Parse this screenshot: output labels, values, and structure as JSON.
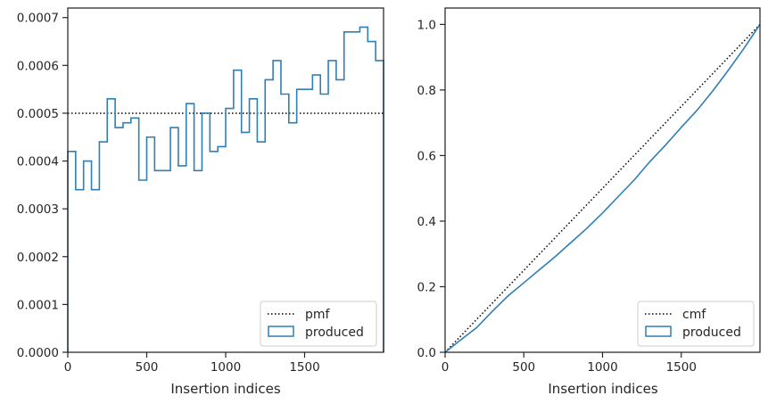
{
  "chart_data": [
    {
      "type": "step",
      "xlabel": "Insertion indices",
      "ylabel": "",
      "xlim": [
        0,
        2000
      ],
      "ylim": [
        0,
        0.00072
      ],
      "xticks": [
        0,
        500,
        1000,
        1500
      ],
      "xtick_labels": [
        "0",
        "500",
        "1000",
        "1500"
      ],
      "yticks": [
        0,
        0.0001,
        0.0002,
        0.0003,
        0.0004,
        0.0005,
        0.0006,
        0.0007
      ],
      "ytick_labels": [
        "0.0000",
        "0.0001",
        "0.0002",
        "0.0003",
        "0.0004",
        "0.0005",
        "0.0006",
        "0.0007"
      ],
      "grid": false,
      "legend_position": "lower-right",
      "legend": [
        "pmf",
        "produced"
      ],
      "series": [
        {
          "name": "pmf",
          "style": "dotted",
          "color": "#000000",
          "x": [
            0,
            2000
          ],
          "values": [
            0.0005,
            0.0005
          ]
        },
        {
          "name": "produced",
          "style": "step-histogram",
          "color": "#2f7fb5",
          "bin_width": 50,
          "bin_starts": [
            0,
            50,
            100,
            150,
            200,
            250,
            300,
            350,
            400,
            450,
            500,
            550,
            600,
            650,
            700,
            750,
            800,
            850,
            900,
            950,
            1000,
            1050,
            1100,
            1150,
            1200,
            1250,
            1300,
            1350,
            1400,
            1450,
            1500,
            1550,
            1600,
            1650,
            1700,
            1750,
            1800,
            1850,
            1900,
            1950
          ],
          "values": [
            0.00042,
            0.00034,
            0.0004,
            0.00034,
            0.00044,
            0.00053,
            0.00047,
            0.00048,
            0.00049,
            0.00036,
            0.00045,
            0.00038,
            0.00038,
            0.00047,
            0.00039,
            0.00052,
            0.00038,
            0.0005,
            0.00042,
            0.00043,
            0.00051,
            0.00059,
            0.00046,
            0.00053,
            0.00044,
            0.00057,
            0.00061,
            0.00054,
            0.00048,
            0.00055,
            0.00055,
            0.00058,
            0.00054,
            0.00061,
            0.00057,
            0.00067,
            0.00067,
            0.00068,
            0.00065,
            0.00061
          ]
        }
      ]
    },
    {
      "type": "line",
      "xlabel": "Insertion indices",
      "ylabel": "",
      "xlim": [
        0,
        2000
      ],
      "ylim": [
        0,
        1.05
      ],
      "xticks": [
        0,
        500,
        1000,
        1500
      ],
      "xtick_labels": [
        "0",
        "500",
        "1000",
        "1500"
      ],
      "yticks": [
        0,
        0.2,
        0.4,
        0.6,
        0.8,
        1.0
      ],
      "ytick_labels": [
        "0.0",
        "0.2",
        "0.4",
        "0.6",
        "0.8",
        "1.0"
      ],
      "grid": false,
      "legend_position": "lower-right",
      "legend": [
        "cmf",
        "produced"
      ],
      "series": [
        {
          "name": "cmf",
          "style": "dotted",
          "color": "#000000",
          "x": [
            0,
            2000
          ],
          "values": [
            0,
            1.0
          ]
        },
        {
          "name": "produced",
          "style": "solid",
          "color": "#2f7fb5",
          "x": [
            0,
            100,
            200,
            300,
            400,
            500,
            600,
            700,
            800,
            900,
            1000,
            1100,
            1200,
            1300,
            1400,
            1500,
            1600,
            1700,
            1800,
            1900,
            2000
          ],
          "values": [
            0,
            0.038,
            0.075,
            0.125,
            0.172,
            0.212,
            0.252,
            0.292,
            0.335,
            0.378,
            0.425,
            0.475,
            0.525,
            0.581,
            0.632,
            0.686,
            0.738,
            0.797,
            0.861,
            0.928,
            1.0
          ]
        }
      ]
    }
  ]
}
